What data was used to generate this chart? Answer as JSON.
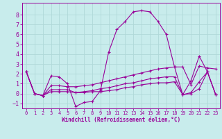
{
  "xlabel": "Windchill (Refroidissement éolien,°C)",
  "background_color": "#c8ecec",
  "grid_color": "#b0d8d8",
  "line_color": "#990099",
  "xlim": [
    -0.5,
    23.5
  ],
  "ylim": [
    -1.5,
    9.2
  ],
  "xticks": [
    0,
    1,
    2,
    3,
    4,
    5,
    6,
    7,
    8,
    9,
    10,
    11,
    12,
    13,
    14,
    15,
    16,
    17,
    18,
    19,
    20,
    21,
    22,
    23
  ],
  "yticks": [
    -1,
    0,
    1,
    2,
    3,
    4,
    5,
    6,
    7,
    8
  ],
  "line1_y": [
    2.2,
    0.0,
    -0.2,
    1.8,
    1.7,
    1.0,
    -1.3,
    -0.9,
    -0.8,
    0.3,
    4.2,
    6.5,
    7.3,
    8.3,
    8.4,
    8.3,
    7.3,
    6.0,
    2.7,
    -0.1,
    1.3,
    3.8,
    2.2,
    -0.1
  ],
  "line2_y": [
    2.2,
    0.0,
    -0.2,
    0.8,
    0.8,
    0.7,
    0.7,
    0.8,
    0.9,
    1.1,
    1.3,
    1.5,
    1.7,
    1.9,
    2.1,
    2.3,
    2.5,
    2.6,
    2.7,
    2.7,
    0.9,
    2.8,
    2.6,
    2.5
  ],
  "line3_y": [
    2.2,
    0.0,
    -0.2,
    0.4,
    0.4,
    0.4,
    0.1,
    0.2,
    0.3,
    0.5,
    0.6,
    0.8,
    1.0,
    1.1,
    1.3,
    1.5,
    1.6,
    1.7,
    1.7,
    -0.1,
    0.1,
    1.2,
    2.2,
    -0.1
  ],
  "line4_y": [
    2.2,
    0.0,
    -0.2,
    0.2,
    0.2,
    0.2,
    0.1,
    0.1,
    0.2,
    0.2,
    0.3,
    0.4,
    0.6,
    0.7,
    0.9,
    1.0,
    1.1,
    1.1,
    1.2,
    -0.1,
    0.0,
    0.5,
    2.2,
    -0.1
  ]
}
